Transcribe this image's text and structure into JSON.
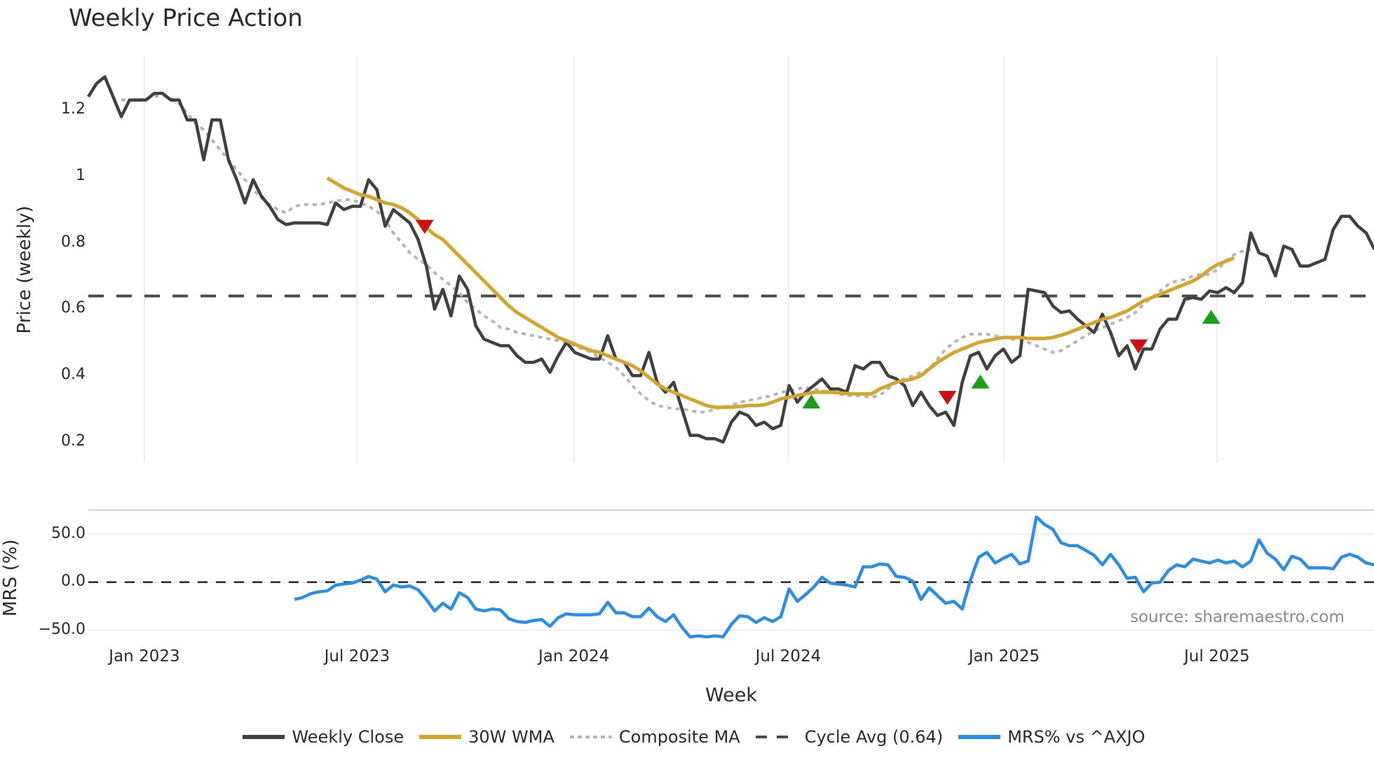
{
  "title": "Weekly Price Action",
  "source_note": "source: sharemaestro.com",
  "price_axis": {
    "label": "Price (weekly)",
    "ticks": [
      {
        "label": "1.2",
        "value": 1.2
      },
      {
        "label": "1",
        "value": 1.0
      },
      {
        "label": "0.8",
        "value": 0.8
      },
      {
        "label": "0.6",
        "value": 0.6
      },
      {
        "label": "0.4",
        "value": 0.4
      },
      {
        "label": "0.2",
        "value": 0.2
      }
    ]
  },
  "mrs_axis": {
    "label": "MRS (%)",
    "ticks": [
      {
        "label": "50.0",
        "value": 50
      },
      {
        "label": "0.0",
        "value": 0
      },
      {
        "label": "−50.0",
        "value": -50
      }
    ]
  },
  "x_axis": {
    "label": "Week",
    "ticks": [
      "Jan 2023",
      "Jul 2023",
      "Jan 2024",
      "Jul 2024",
      "Jan 2025",
      "Jul 2025"
    ]
  },
  "legend": [
    {
      "label": "Weekly Close",
      "color": "#404040",
      "style": "solid"
    },
    {
      "label": "30W WMA",
      "color": "#d4a52a",
      "style": "solid"
    },
    {
      "label": "Composite MA",
      "color": "#b5b5b5",
      "style": "dotted"
    },
    {
      "label": "Cycle Avg (0.64)",
      "color": "#4a4a4a",
      "style": "dashed"
    },
    {
      "label": "MRS% vs ^AXJO",
      "color": "#2b8de8",
      "style": "solid"
    }
  ],
  "colors": {
    "close": "#404040",
    "wma": "#d4a52a",
    "composite": "#b5b5b5",
    "cycle": "#4a4a4a",
    "mrs": "#2b8de8",
    "buy": "#1a9e1a",
    "sell": "#cc1111",
    "grid": "#eceef2"
  },
  "chart_data": [
    {
      "type": "line",
      "title": "Weekly Price Action",
      "xlabel": "Week",
      "ylabel": "Price (weekly)",
      "ylim": [
        0.15,
        1.33
      ],
      "x_start_week": 0,
      "x_ticks": {
        "Jan 2023": 6.8,
        "Jul 2023": 32.6,
        "Jan 2024": 58.9,
        "Jul 2024": 84.9,
        "Jan 2025": 111.1,
        "Jul 2025": 136.9
      },
      "grid": true,
      "legend_position": "bottom",
      "series": [
        {
          "name": "Weekly Close",
          "start_week": 0,
          "values": [
            1.24,
            1.28,
            1.3,
            1.24,
            1.18,
            1.23,
            1.23,
            1.23,
            1.25,
            1.25,
            1.23,
            1.23,
            1.17,
            1.17,
            1.05,
            1.17,
            1.17,
            1.05,
            0.99,
            0.92,
            0.99,
            0.94,
            0.91,
            0.87,
            0.855,
            0.86,
            0.86,
            0.86,
            0.86,
            0.855,
            0.92,
            0.9,
            0.91,
            0.91,
            0.99,
            0.96,
            0.85,
            0.9,
            0.88,
            0.86,
            0.81,
            0.73,
            0.6,
            0.66,
            0.58,
            0.7,
            0.66,
            0.55,
            0.51,
            0.5,
            0.49,
            0.49,
            0.46,
            0.44,
            0.44,
            0.45,
            0.41,
            0.46,
            0.5,
            0.47,
            0.46,
            0.45,
            0.45,
            0.52,
            0.45,
            0.44,
            0.4,
            0.4,
            0.47,
            0.38,
            0.35,
            0.38,
            0.3,
            0.22,
            0.22,
            0.21,
            0.21,
            0.2,
            0.26,
            0.29,
            0.28,
            0.25,
            0.26,
            0.24,
            0.25,
            0.37,
            0.32,
            0.35,
            0.37,
            0.39,
            0.36,
            0.36,
            0.35,
            0.43,
            0.42,
            0.44,
            0.44,
            0.4,
            0.39,
            0.37,
            0.31,
            0.35,
            0.31,
            0.28,
            0.29,
            0.25,
            0.38,
            0.46,
            0.47,
            0.42,
            0.46,
            0.48,
            0.44,
            0.46,
            0.66,
            0.655,
            0.65,
            0.61,
            0.59,
            0.595,
            0.57,
            0.55,
            0.53,
            0.585,
            0.53,
            0.46,
            0.49,
            0.42,
            0.48,
            0.48,
            0.54,
            0.57,
            0.57,
            0.63,
            0.635,
            0.63,
            0.655,
            0.65,
            0.665,
            0.65,
            0.68,
            0.83,
            0.77,
            0.76,
            0.7,
            0.79,
            0.78,
            0.73,
            0.73,
            0.74,
            0.75,
            0.84,
            0.88,
            0.88,
            0.85,
            0.83,
            0.78
          ]
        },
        {
          "name": "30W WMA",
          "start_week": 29,
          "values": [
            0.995,
            0.98,
            0.965,
            0.955,
            0.945,
            0.94,
            0.93,
            0.92,
            0.915,
            0.905,
            0.89,
            0.87,
            0.845,
            0.825,
            0.81,
            0.785,
            0.76,
            0.735,
            0.71,
            0.685,
            0.66,
            0.635,
            0.61,
            0.59,
            0.575,
            0.56,
            0.545,
            0.53,
            0.515,
            0.505,
            0.495,
            0.485,
            0.475,
            0.47,
            0.46,
            0.45,
            0.44,
            0.43,
            0.415,
            0.395,
            0.375,
            0.36,
            0.35,
            0.34,
            0.33,
            0.32,
            0.31,
            0.305,
            0.305,
            0.305,
            0.307,
            0.31,
            0.31,
            0.312,
            0.32,
            0.33,
            0.335,
            0.34,
            0.345,
            0.35,
            0.35,
            0.35,
            0.348,
            0.346,
            0.345,
            0.345,
            0.345,
            0.36,
            0.37,
            0.38,
            0.385,
            0.39,
            0.4,
            0.42,
            0.44,
            0.455,
            0.47,
            0.48,
            0.49,
            0.5,
            0.505,
            0.51,
            0.515,
            0.515,
            0.515,
            0.512,
            0.512,
            0.512,
            0.515,
            0.522,
            0.53,
            0.54,
            0.55,
            0.56,
            0.57,
            0.575,
            0.585,
            0.595,
            0.61,
            0.625,
            0.635,
            0.645,
            0.655,
            0.665,
            0.675,
            0.685,
            0.7,
            0.72,
            0.735,
            0.745,
            0.755
          ]
        },
        {
          "name": "Composite MA",
          "start_week": 4,
          "values": [
            1.23,
            1.23,
            1.23,
            1.235,
            1.24,
            1.245,
            1.235,
            1.22,
            1.19,
            1.16,
            1.14,
            1.11,
            1.08,
            1.05,
            1.02,
            0.99,
            0.96,
            0.935,
            0.915,
            0.9,
            0.89,
            0.91,
            0.915,
            0.915,
            0.915,
            0.92,
            0.925,
            0.93,
            0.93,
            0.92,
            0.91,
            0.895,
            0.87,
            0.83,
            0.8,
            0.77,
            0.75,
            0.735,
            0.71,
            0.69,
            0.67,
            0.65,
            0.62,
            0.6,
            0.58,
            0.565,
            0.545,
            0.54,
            0.53,
            0.525,
            0.52,
            0.515,
            0.51,
            0.505,
            0.5,
            0.49,
            0.48,
            0.47,
            0.455,
            0.44,
            0.425,
            0.4,
            0.37,
            0.345,
            0.325,
            0.31,
            0.305,
            0.3,
            0.3,
            0.295,
            0.29,
            0.29,
            0.3,
            0.305,
            0.31,
            0.32,
            0.325,
            0.33,
            0.335,
            0.34,
            0.35,
            0.355,
            0.36,
            0.365,
            0.36,
            0.355,
            0.35,
            0.345,
            0.34,
            0.34,
            0.338,
            0.335,
            0.34,
            0.36,
            0.38,
            0.39,
            0.4,
            0.41,
            0.42,
            0.45,
            0.48,
            0.5,
            0.515,
            0.525,
            0.525,
            0.525,
            0.52,
            0.515,
            0.51,
            0.51,
            0.5,
            0.49,
            0.48,
            0.47,
            0.475,
            0.49,
            0.505,
            0.52,
            0.535,
            0.545,
            0.555,
            0.565,
            0.575,
            0.59,
            0.615,
            0.635,
            0.655,
            0.675,
            0.685,
            0.69,
            0.7,
            0.705,
            0.705,
            0.72,
            0.745,
            0.765,
            0.775,
            0.78
          ]
        },
        {
          "name": "Cycle Avg (0.64)",
          "constant": 0.64
        }
      ],
      "signals": [
        {
          "type": "sell",
          "week": 40.8,
          "value": 0.85
        },
        {
          "type": "buy",
          "week": 87.7,
          "value": 0.32
        },
        {
          "type": "sell",
          "week": 104.2,
          "value": 0.335
        },
        {
          "type": "buy",
          "week": 108.2,
          "value": 0.38
        },
        {
          "type": "sell",
          "week": 127.4,
          "value": 0.49
        },
        {
          "type": "buy",
          "week": 136.2,
          "value": 0.575
        }
      ]
    },
    {
      "type": "line",
      "title": "MRS% vs ^AXJO",
      "xlabel": "Week",
      "ylabel": "MRS (%)",
      "ylim": [
        -58,
        78
      ],
      "grid": true,
      "zero_line": 0,
      "series": [
        {
          "name": "MRS% vs ^AXJO",
          "start_week": 25,
          "values": [
            -18,
            -16,
            -12,
            -10,
            -9,
            -3,
            -2,
            -1,
            2,
            6,
            3,
            -10,
            -3,
            -5,
            -4,
            -8,
            -18,
            -30,
            -22,
            -28,
            -11,
            -16,
            -28,
            -30,
            -28,
            -29,
            -38,
            -41,
            -42,
            -40,
            -39,
            -46,
            -37,
            -33,
            -34,
            -34,
            -34,
            -33,
            -21,
            -32,
            -32,
            -36,
            -36,
            -27,
            -36,
            -41,
            -34,
            -47,
            -57,
            -56,
            -57,
            -56,
            -57,
            -44,
            -35,
            -36,
            -42,
            -37,
            -41,
            -36,
            -7,
            -20,
            -13,
            -5,
            5,
            -1,
            -2,
            -3,
            -5,
            16,
            16,
            19,
            18,
            6,
            5,
            1,
            -18,
            -6,
            -14,
            -22,
            -20,
            -28,
            2,
            26,
            31,
            20,
            25,
            29,
            19,
            22,
            68,
            60,
            55,
            41,
            38,
            38,
            33,
            28,
            18,
            29,
            18,
            4,
            5,
            -10,
            -1,
            0,
            12,
            18,
            16,
            24,
            22,
            20,
            23,
            20,
            22,
            16,
            22,
            44,
            30,
            24,
            13,
            27,
            24,
            15,
            15,
            15,
            14,
            26,
            29,
            26,
            20,
            18,
            12
          ]
        }
      ]
    }
  ]
}
